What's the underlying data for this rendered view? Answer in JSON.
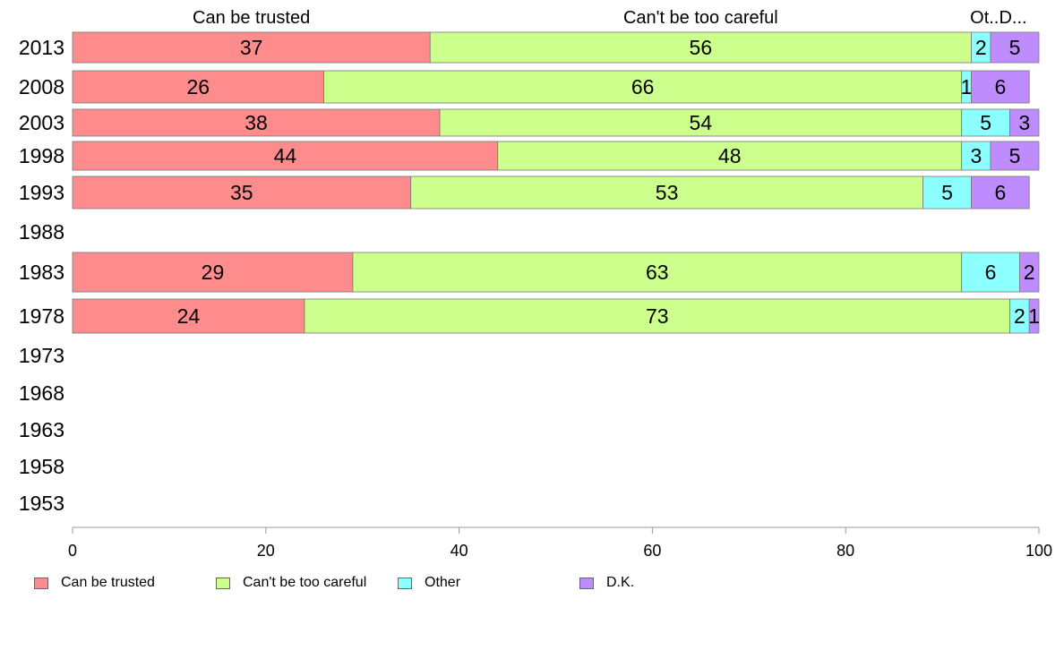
{
  "chart_data": {
    "type": "bar",
    "orientation": "horizontal",
    "stacked": true,
    "categories": [
      "2013",
      "2008",
      "2003",
      "1998",
      "1993",
      "1988",
      "1983",
      "1978",
      "1973",
      "1968",
      "1963",
      "1958",
      "1953"
    ],
    "series": [
      {
        "name": "Can be trusted",
        "color": "#ff8c8c",
        "values": [
          37,
          26,
          38,
          44,
          35,
          null,
          29,
          24,
          null,
          null,
          null,
          null,
          null
        ]
      },
      {
        "name": "Can't be too careful",
        "color": "#ccff8c",
        "values": [
          56,
          66,
          54,
          48,
          53,
          null,
          63,
          73,
          null,
          null,
          null,
          null,
          null
        ]
      },
      {
        "name": "Other",
        "color": "#8cffff",
        "values": [
          2,
          1,
          5,
          3,
          5,
          null,
          6,
          2,
          null,
          null,
          null,
          null,
          null
        ]
      },
      {
        "name": "D.K.",
        "color": "#bf8cff",
        "values": [
          5,
          6,
          3,
          5,
          6,
          null,
          2,
          1,
          null,
          null,
          null,
          null,
          null
        ]
      }
    ],
    "top_labels": [
      "Can be trusted",
      "Can't be too careful",
      "Ot..",
      "D..."
    ],
    "xlim": [
      0,
      100
    ],
    "xticks": [
      0,
      20,
      40,
      60,
      80,
      100
    ],
    "legend_position": "bottom-left",
    "grid": false
  }
}
